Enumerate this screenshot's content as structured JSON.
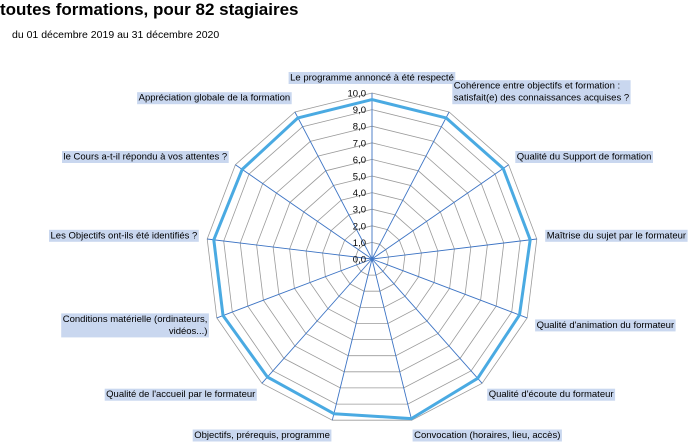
{
  "header": {
    "title": "toutes formations, pour 82 stagiaires",
    "subtitle": "du 01 décembre 2019 au 31 décembre 2020"
  },
  "colors": {
    "series": "#4aaae2",
    "label_highlight": "#c9d7ef",
    "grid": "#9a9a9a",
    "spoke": "#3d74c4"
  },
  "chart_data": {
    "type": "radar",
    "title": "toutes formations, pour 82 stagiaires",
    "subtitle": "du 01 décembre 2019 au 31 décembre 2020",
    "categories": [
      [
        "Le programme annoncé à été respecté"
      ],
      [
        "Cohérence entre objectifs et formation :",
        "satisfait(e) des connaissances acquises ?"
      ],
      [
        "Qualité du Support de formation"
      ],
      [
        "Maîtrise du sujet par le formateur"
      ],
      [
        "Qualité d'animation du formateur"
      ],
      [
        "Qualité d'écoute du formateur"
      ],
      [
        "Convocation (horaires, lieu, accès)"
      ],
      [
        "Objectifs, prérequis, programme"
      ],
      [
        "Qualité de l'accueil par le formateur"
      ],
      [
        "Conditions matérielle (ordinateurs,",
        "vidéos...)"
      ],
      [
        "Les Objectifs ont-ils été identifiés ?"
      ],
      [
        "le Cours a-t-il répondu à vos attentes ?"
      ],
      [
        "Appréciation globale de la formation"
      ]
    ],
    "series": [
      {
        "values": [
          9.6,
          9.6,
          9.6,
          9.6,
          9.5,
          9.6,
          9.9,
          9.6,
          9.5,
          9.6,
          9.6,
          9.5,
          9.6
        ]
      }
    ],
    "rlim": [
      0,
      10
    ],
    "ticks": [
      "0,0",
      "1,0",
      "2,0",
      "3,0",
      "4,0",
      "5,0",
      "6,0",
      "7,0",
      "8,0",
      "9,0",
      "10,0"
    ],
    "grid": true,
    "legend": "none"
  }
}
